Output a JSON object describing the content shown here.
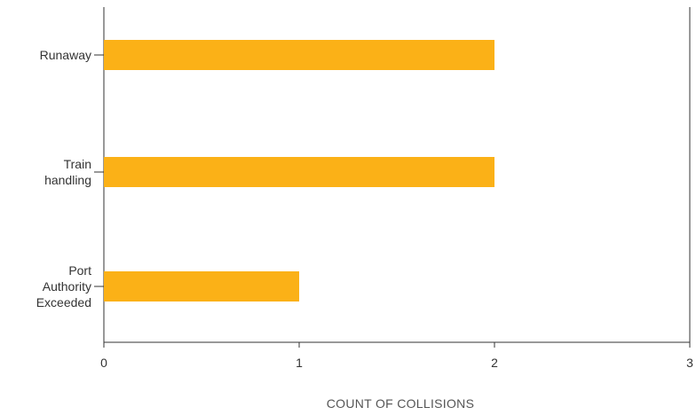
{
  "chart_data": {
    "type": "bar",
    "orientation": "horizontal",
    "categories": [
      [
        "Runaway"
      ],
      [
        "Train",
        "handling"
      ],
      [
        "Port",
        "Authority",
        "Exceeded"
      ]
    ],
    "values": [
      2,
      2,
      1
    ],
    "xlabel": "COUNT OF COLLISIONS",
    "ylabel": "",
    "xlim": [
      0,
      3
    ],
    "xticks": [
      "0",
      "1",
      "2",
      "3"
    ],
    "grid": false,
    "legend": "none",
    "bar_color": "#fbb117",
    "axis_color": "#333333"
  }
}
